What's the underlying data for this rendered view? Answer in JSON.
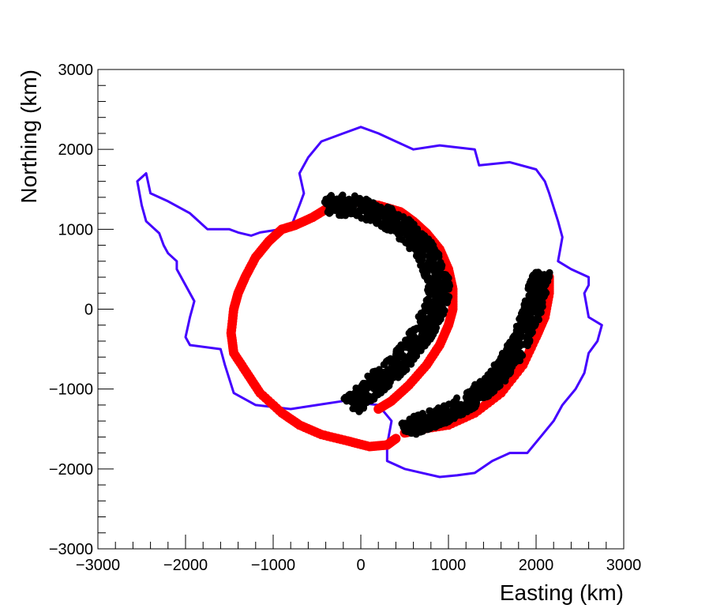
{
  "chart_data": {
    "type": "scatter",
    "title": "",
    "xlabel": "Easting (km)",
    "ylabel": "Northing (km)",
    "xlim": [
      -3000,
      3000
    ],
    "ylim": [
      -3000,
      3000
    ],
    "xticks": [
      "−3000",
      "−2000",
      "−1000",
      "0",
      "1000",
      "2000",
      "3000"
    ],
    "yticks": [
      "−3000",
      "−2000",
      "−1000",
      "0",
      "1000",
      "2000",
      "3000"
    ],
    "xtick_values": [
      -3000,
      -2000,
      -1000,
      0,
      1000,
      2000,
      3000
    ],
    "ytick_values": [
      -3000,
      -2000,
      -1000,
      0,
      1000,
      2000,
      3000
    ],
    "grid": false,
    "legend": "none",
    "colors": {
      "outline": "#4400ff",
      "red": "#ff0000",
      "black": "#000000"
    },
    "series": [
      {
        "kind": "line",
        "color": "#4400ff",
        "points": [
          [
            -1600,
            1000
          ],
          [
            -1500,
            1000
          ],
          [
            -1400,
            960
          ],
          [
            -1250,
            920
          ],
          [
            -1150,
            960
          ],
          [
            -800,
            1020
          ],
          [
            -700,
            1300
          ],
          [
            -650,
            1450
          ],
          [
            -700,
            1700
          ],
          [
            -600,
            1900
          ],
          [
            -450,
            2100
          ],
          [
            -200,
            2200
          ],
          [
            0,
            2280
          ],
          [
            200,
            2200
          ],
          [
            400,
            2100
          ],
          [
            600,
            2000
          ],
          [
            900,
            2050
          ],
          [
            1300,
            2000
          ],
          [
            1350,
            1800
          ],
          [
            1700,
            1840
          ],
          [
            2000,
            1750
          ],
          [
            2100,
            1600
          ],
          [
            2150,
            1450
          ],
          [
            2250,
            1100
          ],
          [
            2300,
            900
          ],
          [
            2250,
            600
          ],
          [
            2400,
            500
          ],
          [
            2600,
            400
          ],
          [
            2600,
            300
          ],
          [
            2550,
            200
          ],
          [
            2600,
            -100
          ],
          [
            2750,
            -200
          ],
          [
            2700,
            -400
          ],
          [
            2600,
            -550
          ],
          [
            2550,
            -800
          ],
          [
            2450,
            -1000
          ],
          [
            2300,
            -1200
          ],
          [
            2200,
            -1400
          ],
          [
            2050,
            -1600
          ],
          [
            1900,
            -1800
          ],
          [
            1700,
            -1800
          ],
          [
            1500,
            -1900
          ],
          [
            1300,
            -2050
          ],
          [
            1100,
            -2080
          ],
          [
            900,
            -2100
          ],
          [
            700,
            -2050
          ],
          [
            500,
            -2000
          ],
          [
            300,
            -1900
          ],
          [
            300,
            -1700
          ],
          [
            350,
            -1400
          ],
          [
            200,
            -1200
          ],
          [
            -200,
            -1150
          ],
          [
            -500,
            -1200
          ],
          [
            -800,
            -1250
          ],
          [
            -1200,
            -1200
          ],
          [
            -1450,
            -1050
          ],
          [
            -1550,
            -700
          ],
          [
            -1600,
            -500
          ],
          [
            -1950,
            -450
          ],
          [
            -2000,
            -350
          ],
          [
            -1950,
            -100
          ],
          [
            -1900,
            100
          ],
          [
            -2000,
            300
          ],
          [
            -2100,
            500
          ],
          [
            -2100,
            600
          ],
          [
            -2200,
            700
          ],
          [
            -2250,
            800
          ],
          [
            -2300,
            950
          ],
          [
            -2450,
            1100
          ],
          [
            -2500,
            1300
          ],
          [
            -2550,
            1600
          ],
          [
            -2450,
            1700
          ],
          [
            -2400,
            1450
          ],
          [
            -2200,
            1350
          ],
          [
            -1950,
            1200
          ],
          [
            -1750,
            1000
          ],
          [
            -1600,
            1000
          ]
        ]
      },
      {
        "kind": "band",
        "color": "#ff0000",
        "points": [
          [
            -400,
            1250
          ],
          [
            -550,
            1150
          ],
          [
            -750,
            1050
          ],
          [
            -900,
            1000
          ],
          [
            -1050,
            850
          ],
          [
            -1200,
            650
          ],
          [
            -1320,
            400
          ],
          [
            -1400,
            200
          ],
          [
            -1450,
            0
          ],
          [
            -1480,
            -300
          ],
          [
            -1450,
            -550
          ],
          [
            -1300,
            -800
          ],
          [
            -1150,
            -1050
          ],
          [
            -900,
            -1300
          ],
          [
            -700,
            -1450
          ],
          [
            -450,
            -1570
          ],
          [
            -150,
            -1650
          ],
          [
            100,
            -1720
          ],
          [
            300,
            -1700
          ],
          [
            400,
            -1620
          ]
        ]
      },
      {
        "kind": "band",
        "color": "#ff0000",
        "points": [
          [
            -100,
            1350
          ],
          [
            200,
            1300
          ],
          [
            450,
            1220
          ],
          [
            600,
            1100
          ],
          [
            750,
            950
          ],
          [
            900,
            750
          ],
          [
            1000,
            500
          ],
          [
            1050,
            250
          ],
          [
            1050,
            0
          ],
          [
            1000,
            -200
          ],
          [
            900,
            -450
          ],
          [
            750,
            -700
          ],
          [
            550,
            -950
          ],
          [
            350,
            -1150
          ],
          [
            200,
            -1250
          ]
        ]
      },
      {
        "kind": "band",
        "color": "#ff0000",
        "points": [
          [
            2150,
            400
          ],
          [
            2150,
            200
          ],
          [
            2100,
            -100
          ],
          [
            2000,
            -350
          ],
          [
            1850,
            -700
          ],
          [
            1600,
            -1050
          ],
          [
            1300,
            -1300
          ],
          [
            1000,
            -1450
          ],
          [
            700,
            -1500
          ],
          [
            500,
            -1550
          ]
        ]
      },
      {
        "kind": "points",
        "color": "#000000",
        "spine": [
          [
            -400,
            1300
          ],
          [
            -100,
            1300
          ],
          [
            200,
            1200
          ],
          [
            450,
            1050
          ],
          [
            650,
            850
          ],
          [
            800,
            600
          ],
          [
            900,
            300
          ],
          [
            850,
            0
          ],
          [
            700,
            -300
          ],
          [
            500,
            -600
          ],
          [
            250,
            -850
          ],
          [
            50,
            -1050
          ],
          [
            -100,
            -1200
          ]
        ],
        "width": 260
      },
      {
        "kind": "points",
        "color": "#000000",
        "spine": [
          [
            2050,
            450
          ],
          [
            2000,
            150
          ],
          [
            1900,
            -200
          ],
          [
            1750,
            -550
          ],
          [
            1550,
            -850
          ],
          [
            1300,
            -1100
          ],
          [
            1000,
            -1300
          ],
          [
            750,
            -1400
          ],
          [
            500,
            -1500
          ]
        ],
        "width": 220
      }
    ]
  }
}
